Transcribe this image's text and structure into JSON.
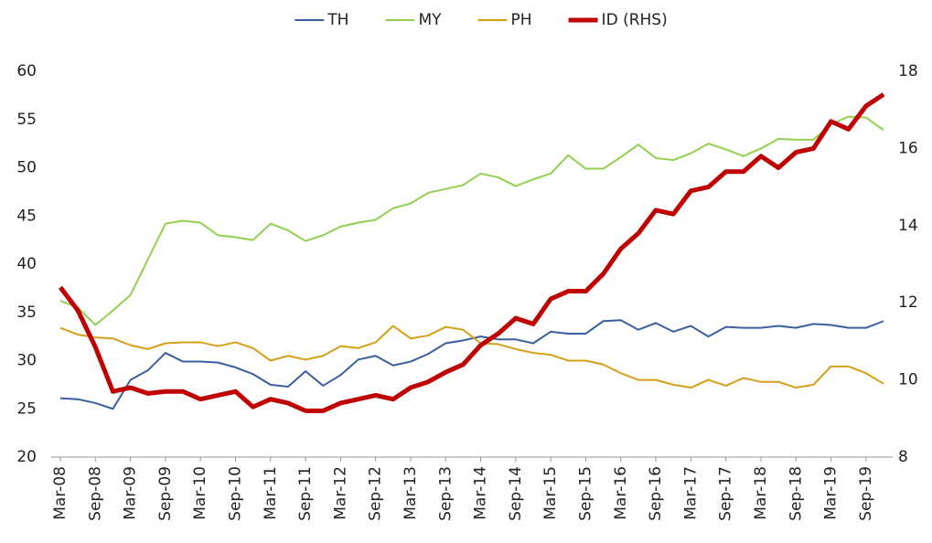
{
  "chart_data": {
    "type": "line",
    "categories": [
      "Mar-08",
      null,
      "Sep-08",
      null,
      "Mar-09",
      null,
      "Sep-09",
      null,
      "Mar-10",
      null,
      "Sep-10",
      null,
      "Mar-11",
      null,
      "Sep-11",
      null,
      "Mar-12",
      null,
      "Sep-12",
      null,
      "Mar-13",
      null,
      "Sep-13",
      null,
      "Mar-14",
      null,
      "Sep-14",
      null,
      "Mar-15",
      null,
      "Sep-15",
      null,
      "Mar-16",
      null,
      "Sep-16",
      null,
      "Mar-17",
      null,
      "Sep-17",
      null,
      "Mar-18",
      null,
      "Sep-18",
      null,
      "Mar-19",
      null,
      "Sep-19",
      null
    ],
    "series": [
      {
        "name": "TH",
        "color": "#3a5f9e",
        "width": 2,
        "values": [
          26.1,
          26.0,
          25.6,
          25.0,
          28.0,
          29.0,
          30.8,
          29.9,
          29.9,
          29.8,
          29.3,
          28.6,
          27.5,
          27.3,
          28.9,
          27.4,
          28.5,
          30.1,
          30.5,
          29.5,
          29.9,
          30.7,
          31.8,
          32.1,
          32.5,
          32.2,
          32.2,
          31.8,
          33.0,
          32.8,
          32.8,
          34.1,
          34.2,
          33.2,
          33.9,
          33.0,
          33.6,
          32.5,
          33.5,
          33.4,
          33.4,
          33.6,
          33.4,
          33.8,
          33.7,
          33.4,
          33.4,
          34.1
        ]
      },
      {
        "name": "MY",
        "color": "#92d050",
        "width": 2,
        "values": [
          36.2,
          35.5,
          33.7,
          35.2,
          36.8,
          40.5,
          44.2,
          44.5,
          44.3,
          43.0,
          42.8,
          42.5,
          44.2,
          43.5,
          42.4,
          43.0,
          43.9,
          44.3,
          44.6,
          45.8,
          46.3,
          47.4,
          47.8,
          48.2,
          49.4,
          49.0,
          48.1,
          48.8,
          49.4,
          51.3,
          49.9,
          49.9,
          51.1,
          52.4,
          51.0,
          50.8,
          51.5,
          52.5,
          51.9,
          51.2,
          52.0,
          53.0,
          52.9,
          52.9,
          54.5,
          55.3,
          55.2,
          53.9
        ]
      },
      {
        "name": "PH",
        "color": "#d4a017",
        "width": 2,
        "values": [
          33.4,
          32.7,
          32.4,
          32.3,
          31.6,
          31.2,
          31.8,
          31.9,
          31.9,
          31.5,
          31.9,
          31.3,
          30.0,
          30.5,
          30.1,
          30.5,
          31.5,
          31.3,
          31.9,
          33.6,
          32.3,
          32.6,
          33.5,
          33.2,
          31.8,
          31.7,
          31.2,
          30.8,
          30.6,
          30.0,
          30.0,
          29.6,
          28.7,
          28.0,
          28.0,
          27.5,
          27.2,
          28.0,
          27.4,
          28.2,
          27.8,
          27.8,
          27.2,
          27.5,
          29.4,
          29.4,
          28.7,
          27.6
        ]
      },
      {
        "name": "ID (RHS)",
        "color": "#c00000",
        "width": 5,
        "axis": "y2",
        "values": [
          12.4,
          11.8,
          10.85,
          9.7,
          9.8,
          9.65,
          9.7,
          9.7,
          9.5,
          9.6,
          9.7,
          9.3,
          9.5,
          9.4,
          9.2,
          9.2,
          9.4,
          9.5,
          9.6,
          9.5,
          9.8,
          9.95,
          10.2,
          10.4,
          10.9,
          11.2,
          11.6,
          11.45,
          12.1,
          12.3,
          12.3,
          12.75,
          13.4,
          13.8,
          14.4,
          14.3,
          14.9,
          15.0,
          15.4,
          15.4,
          15.8,
          15.5,
          15.9,
          16.0,
          16.7,
          16.5,
          17.1,
          17.4
        ]
      }
    ],
    "ylim": [
      20,
      60
    ],
    "yticks": [
      20,
      25,
      30,
      35,
      40,
      45,
      50,
      55,
      60
    ],
    "y2lim": [
      8,
      18
    ],
    "y2ticks": [
      8,
      10,
      12,
      14,
      16,
      18
    ],
    "grid": false,
    "legend": "top"
  }
}
